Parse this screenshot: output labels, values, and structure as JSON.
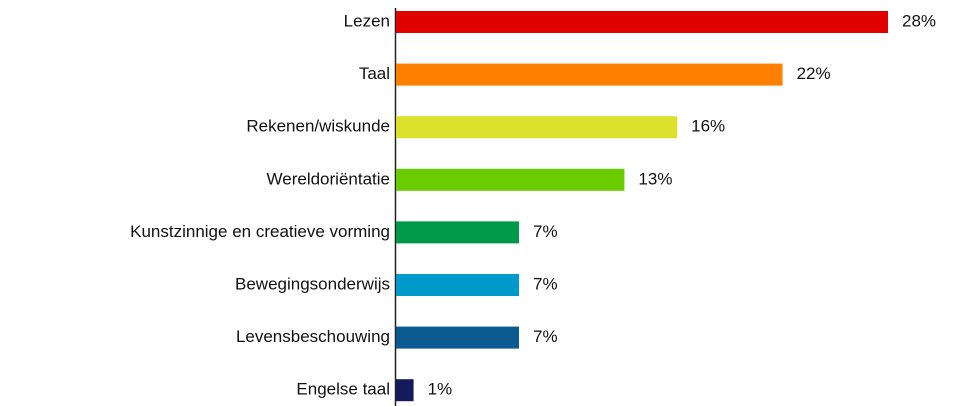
{
  "chart_data": {
    "type": "bar",
    "orientation": "horizontal",
    "categories": [
      "Lezen",
      "Taal",
      "Rekenen/wiskunde",
      "Wereldoriëntatie",
      "Kunstzinnige en creatieve vorming",
      "Bewegingsonderwijs",
      "Levensbeschouwing",
      "Engelse taal"
    ],
    "values": [
      28,
      22,
      16,
      13,
      7,
      7,
      7,
      1
    ],
    "value_labels": [
      "28%",
      "22%",
      "16%",
      "13%",
      "7%",
      "7%",
      "7%",
      "1%"
    ],
    "colors": [
      "#e00000",
      "#ff7f00",
      "#dde02a",
      "#6acc00",
      "#00994a",
      "#0099cc",
      "#0a5a91",
      "#141a5c"
    ]
  }
}
